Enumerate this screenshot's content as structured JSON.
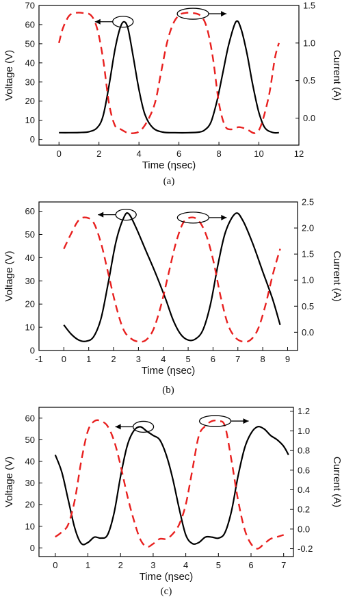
{
  "colors": {
    "voltage": "#000000",
    "current": "#e8201f",
    "frame": "#000000"
  },
  "chart_data": [
    {
      "type": "line",
      "caption": "(a)",
      "xlabel": "Time (ηsec)",
      "ylabel": "Voltage (V)",
      "y2label": "Current (A)",
      "xlim": [
        -1,
        12
      ],
      "ylim": [
        -3,
        70
      ],
      "y2lim": [
        -0.36,
        1.5
      ],
      "xticks": [
        0,
        2,
        4,
        6,
        8,
        10,
        12
      ],
      "yticks": [
        0,
        10,
        20,
        30,
        40,
        50,
        60,
        70
      ],
      "y2ticks": [
        0.0,
        0.5,
        1.0,
        1.5
      ],
      "y2tick_labels": [
        "0.0",
        "0.5",
        "1.0",
        "1.5"
      ],
      "grid": false,
      "arrows": [
        {
          "target": "voltage",
          "direction": "left",
          "x": 3.2,
          "y": 61.5
        },
        {
          "target": "current",
          "direction": "right",
          "x": 6.7,
          "y": 1.39
        }
      ],
      "series": [
        {
          "axis": "left",
          "style": "solid",
          "color": "#000000",
          "x": [
            0,
            0.5,
            1,
            1.5,
            1.9,
            2.2,
            2.5,
            2.8,
            3.05,
            3.25,
            3.45,
            3.7,
            4.0,
            4.3,
            4.7,
            5.2,
            5.8,
            6.5,
            7.0,
            7.3,
            7.6,
            7.9,
            8.2,
            8.5,
            8.85,
            9.1,
            9.4,
            9.7,
            10.0,
            10.3,
            10.7,
            11.0
          ],
          "y": [
            3.5,
            3.5,
            3.6,
            4,
            6,
            12,
            28,
            47,
            58,
            61.5,
            58,
            44,
            26,
            13,
            6,
            3.8,
            3.5,
            3.5,
            3.8,
            5,
            9,
            20,
            35,
            50,
            61.5,
            58,
            45,
            28,
            14,
            6,
            3.6,
            3.5
          ]
        },
        {
          "axis": "right",
          "style": "dashed",
          "color": "#e8201f",
          "x": [
            0,
            0.2,
            0.5,
            0.8,
            1.2,
            1.6,
            1.9,
            2.2,
            2.5,
            2.8,
            3.1,
            3.5,
            4.0,
            4.4,
            4.8,
            5.1,
            5.4,
            5.7,
            6.0,
            6.3,
            6.7,
            7.1,
            7.4,
            7.7,
            8.0,
            8.3,
            8.6,
            9.0,
            9.4,
            9.8,
            10.1,
            10.5,
            10.8,
            11.0
          ],
          "y": [
            1.0,
            1.2,
            1.36,
            1.4,
            1.4,
            1.37,
            1.2,
            0.8,
            0.2,
            -0.1,
            -0.15,
            -0.2,
            -0.18,
            -0.05,
            0.2,
            0.6,
            1.0,
            1.25,
            1.37,
            1.4,
            1.4,
            1.36,
            1.2,
            0.8,
            0.2,
            -0.1,
            -0.15,
            -0.12,
            -0.15,
            -0.2,
            -0.1,
            0.3,
            0.8,
            1.0
          ]
        }
      ]
    },
    {
      "type": "line",
      "caption": "(b)",
      "xlabel": "Time (ηsec)",
      "ylabel": "Voltage (V)",
      "y2label": "Current (A)",
      "xlim": [
        -1,
        9.4
      ],
      "ylim": [
        0,
        64
      ],
      "y2lim": [
        -0.35,
        2.5
      ],
      "xticks": [
        -1,
        0,
        1,
        2,
        3,
        4,
        5,
        6,
        7,
        8,
        9
      ],
      "yticks": [
        0,
        10,
        20,
        30,
        40,
        50,
        60
      ],
      "y2ticks": [
        0.0,
        0.5,
        1.0,
        1.5,
        2.0,
        2.5
      ],
      "y2tick_labels": [
        "0.0",
        "0.5",
        "1.0",
        "1.5",
        "2.0",
        "2.5"
      ],
      "grid": false,
      "arrows": [
        {
          "target": "voltage",
          "direction": "left",
          "x": 2.5,
          "y": 58.5
        },
        {
          "target": "current",
          "direction": "right",
          "x": 5.2,
          "y": 2.2
        }
      ],
      "series": [
        {
          "axis": "left",
          "style": "solid",
          "color": "#000000",
          "x": [
            0,
            0.3,
            0.6,
            0.9,
            1.2,
            1.5,
            1.8,
            2.1,
            2.4,
            2.6,
            2.9,
            3.3,
            3.7,
            4.1,
            4.4,
            4.7,
            5.0,
            5.3,
            5.6,
            5.9,
            6.2,
            6.5,
            6.9,
            7.2,
            7.6,
            8.0,
            8.4,
            8.7
          ],
          "y": [
            11,
            7,
            4.5,
            4,
            6,
            14,
            30,
            47,
            57,
            59,
            53,
            43,
            33,
            22,
            13,
            7,
            4.5,
            5,
            9,
            20,
            37,
            51,
            59,
            56,
            46,
            34,
            22,
            11
          ]
        },
        {
          "axis": "right",
          "style": "dashed",
          "color": "#e8201f",
          "x": [
            0,
            0.3,
            0.6,
            0.9,
            1.2,
            1.5,
            1.8,
            2.1,
            2.4,
            2.7,
            3.0,
            3.3,
            3.6,
            3.9,
            4.2,
            4.5,
            4.8,
            5.1,
            5.4,
            5.7,
            6.0,
            6.3,
            6.6,
            6.9,
            7.2,
            7.5,
            7.8,
            8.1,
            8.4,
            8.7
          ],
          "y": [
            1.6,
            1.9,
            2.15,
            2.2,
            2.1,
            1.7,
            1.1,
            0.5,
            0.05,
            -0.12,
            -0.18,
            -0.15,
            0.05,
            0.5,
            1.1,
            1.7,
            2.1,
            2.2,
            2.15,
            1.9,
            1.4,
            0.7,
            0.15,
            -0.1,
            -0.18,
            -0.15,
            0.05,
            0.5,
            1.1,
            1.6
          ]
        }
      ]
    },
    {
      "type": "line",
      "caption": "(c)",
      "xlabel": "Time (ηsec)",
      "ylabel": "Voltage (V)",
      "y2label": "Current (A)",
      "xlim": [
        -0.5,
        7.3
      ],
      "ylim": [
        -4,
        65
      ],
      "y2lim": [
        -0.28,
        1.24
      ],
      "xticks": [
        0,
        1,
        2,
        3,
        4,
        5,
        6,
        7
      ],
      "yticks": [
        0,
        10,
        20,
        30,
        40,
        50,
        60
      ],
      "y2ticks": [
        -0.2,
        0.0,
        0.2,
        0.4,
        0.6,
        0.8,
        1.0,
        1.2
      ],
      "y2tick_labels": [
        "-0.2",
        "0.0",
        "0.2",
        "0.4",
        "0.6",
        "0.8",
        "1.0",
        "1.2"
      ],
      "grid": false,
      "arrows": [
        {
          "target": "voltage",
          "direction": "left",
          "x": 2.7,
          "y": 56
        },
        {
          "target": "current",
          "direction": "right",
          "x": 4.9,
          "y": 1.1
        }
      ],
      "series": [
        {
          "axis": "left",
          "style": "solid",
          "color": "#000000",
          "x": [
            0,
            0.2,
            0.4,
            0.6,
            0.8,
            1.0,
            1.2,
            1.4,
            1.6,
            1.8,
            2.0,
            2.2,
            2.4,
            2.6,
            2.8,
            3.0,
            3.2,
            3.4,
            3.6,
            3.8,
            4.0,
            4.2,
            4.4,
            4.6,
            4.8,
            5.0,
            5.2,
            5.4,
            5.6,
            5.8,
            6.0,
            6.2,
            6.4,
            6.6,
            6.8,
            7.0,
            7.15
          ],
          "y": [
            43,
            35,
            22,
            9,
            2,
            2.5,
            5,
            4.5,
            6,
            16,
            33,
            47,
            54,
            56,
            54,
            52,
            50,
            43,
            32,
            18,
            6,
            2,
            2.5,
            5,
            5,
            4.5,
            7,
            17,
            33,
            46,
            53,
            56,
            55,
            52,
            50,
            47,
            43
          ]
        },
        {
          "axis": "right",
          "style": "dashed",
          "color": "#e8201f",
          "x": [
            0,
            0.2,
            0.4,
            0.6,
            0.8,
            1.0,
            1.2,
            1.4,
            1.6,
            1.8,
            2.0,
            2.2,
            2.4,
            2.6,
            2.8,
            3.0,
            3.2,
            3.4,
            3.6,
            3.8,
            4.0,
            4.2,
            4.4,
            4.6,
            4.8,
            5.0,
            5.2,
            5.4,
            5.6,
            5.8,
            6.0,
            6.2,
            6.4,
            6.6,
            6.8,
            7.0
          ],
          "y": [
            -0.08,
            -0.03,
            0.05,
            0.3,
            0.7,
            1.0,
            1.1,
            1.1,
            1.05,
            0.9,
            0.65,
            0.35,
            0.1,
            -0.1,
            -0.18,
            -0.15,
            -0.1,
            -0.1,
            -0.05,
            0.05,
            0.25,
            0.6,
            0.95,
            1.05,
            1.1,
            1.1,
            1.05,
            0.7,
            0.3,
            0.0,
            -0.15,
            -0.2,
            -0.15,
            -0.1,
            -0.08,
            -0.06
          ]
        }
      ]
    }
  ]
}
